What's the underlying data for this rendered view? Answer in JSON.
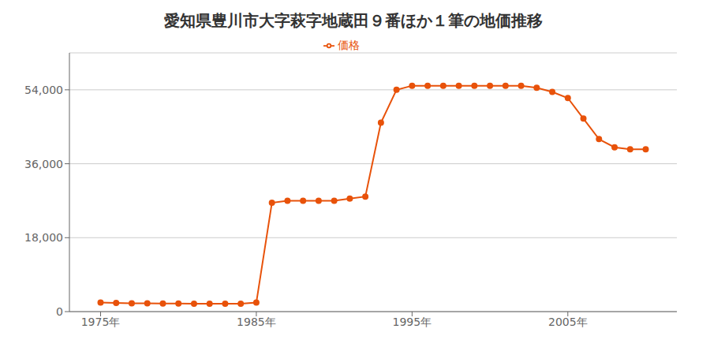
{
  "chart_data": {
    "type": "line",
    "title": "愛知県豊川市大字萩字地蔵田９番ほか１筆の地価推移",
    "x": [
      1975,
      1976,
      1977,
      1978,
      1979,
      1980,
      1981,
      1982,
      1983,
      1984,
      1985,
      1986,
      1987,
      1988,
      1989,
      1990,
      1991,
      1992,
      1993,
      1994,
      1995,
      1996,
      1997,
      1998,
      1999,
      2000,
      2001,
      2002,
      2003,
      2004,
      2005,
      2006,
      2007,
      2008,
      2009,
      2010
    ],
    "series": [
      {
        "name": "価格",
        "color": "#e8520a",
        "marker": "circle",
        "values": [
          2200,
          2100,
          2000,
          2000,
          1950,
          1950,
          1900,
          1900,
          1900,
          1900,
          2200,
          26500,
          27000,
          27000,
          27000,
          27000,
          27500,
          28000,
          46000,
          54000,
          55000,
          55000,
          55000,
          55000,
          55000,
          55000,
          55000,
          55000,
          54500,
          53500,
          52000,
          47000,
          42000,
          40000,
          39500,
          39500
        ]
      }
    ],
    "xlim": [
      1973,
      2012
    ],
    "xticks": [
      {
        "value": 1975,
        "label": "1975年"
      },
      {
        "value": 1985,
        "label": "1985年"
      },
      {
        "value": 1995,
        "label": "1995年"
      },
      {
        "value": 2005,
        "label": "2005年"
      }
    ],
    "ylim": [
      0,
      63000
    ],
    "yticks": [
      0,
      {
        "value": 18000,
        "label": "18,000"
      },
      {
        "value": 36000,
        "label": "36,000"
      },
      {
        "value": 54000,
        "label": "54,000"
      }
    ],
    "grid": true,
    "legend": "top"
  }
}
